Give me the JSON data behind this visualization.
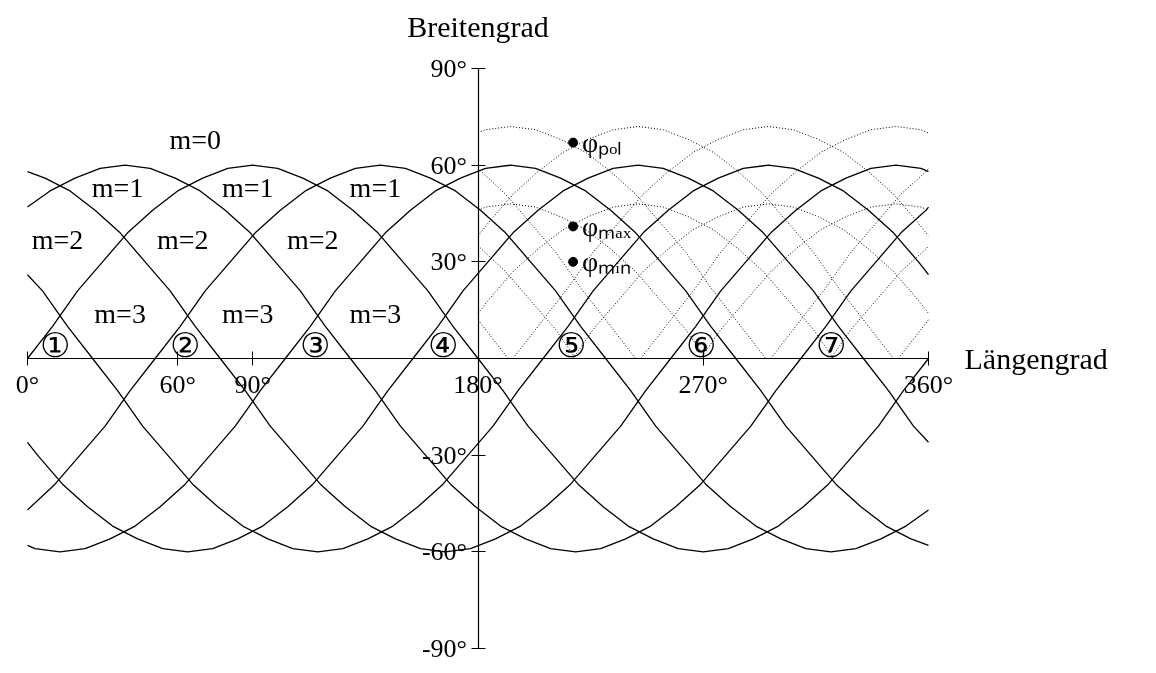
{
  "chart_data": {
    "type": "line",
    "xlabel": "Längengrad",
    "ylabel": "Breitengrad",
    "xlim": [
      0,
      360
    ],
    "ylim": [
      -90,
      90
    ],
    "xticks": [
      {
        "value": 0,
        "label": "0°"
      },
      {
        "value": 60,
        "label": "60°"
      },
      {
        "value": 90,
        "label": "90°"
      },
      {
        "value": 180,
        "label": "180°"
      },
      {
        "value": 270,
        "label": "270°"
      },
      {
        "value": 360,
        "label": "360°"
      }
    ],
    "yticks": [
      {
        "value": -90,
        "label": "-90°"
      },
      {
        "value": -60,
        "label": "-60°"
      },
      {
        "value": -30,
        "label": "-30°"
      },
      {
        "value": 30,
        "label": "30°"
      },
      {
        "value": 60,
        "label": "60°"
      },
      {
        "value": 90,
        "label": "90°"
      }
    ],
    "grid": false,
    "series": [
      {
        "line_style": "solid",
        "color": "#000000",
        "x": [
          0,
          10,
          20,
          30,
          40,
          50,
          60,
          70,
          80,
          90,
          100,
          110,
          120,
          130,
          140,
          150,
          160,
          170,
          180,
          190,
          200,
          210,
          220,
          230,
          240,
          250,
          260,
          270,
          280,
          290,
          300,
          310,
          320,
          330,
          340,
          350,
          360
        ],
        "values": [
          0,
          10,
          21,
          30,
          39,
          46,
          52,
          56,
          59,
          60,
          59,
          56,
          52,
          46,
          39,
          30,
          21,
          10,
          0,
          -10,
          -21,
          -30,
          -39,
          -46,
          -52,
          -56,
          -59,
          -60,
          -59,
          -56,
          -52,
          -46,
          -39,
          -30,
          -21,
          -10,
          0
        ]
      },
      {
        "line_style": "solid",
        "color": "#000000",
        "x": [
          0,
          11,
          21,
          31,
          41,
          51,
          61,
          71,
          81,
          91,
          101,
          111,
          121,
          131,
          141,
          151,
          161,
          171,
          181,
          191,
          201,
          211,
          221,
          231,
          241,
          251,
          261,
          271,
          281,
          291,
          301,
          311,
          321,
          331,
          341,
          351,
          360
        ],
        "values": [
          -47,
          -39,
          -30,
          -21,
          -10,
          0,
          10,
          21,
          30,
          39,
          46,
          52,
          56,
          59,
          60,
          59,
          56,
          52,
          46,
          39,
          30,
          21,
          10,
          0,
          -10,
          -21,
          -30,
          -39,
          -46,
          -52,
          -56,
          -59,
          -60,
          -59,
          -56,
          -52,
          -47
        ]
      },
      {
        "line_style": "solid",
        "color": "#000000",
        "x": [
          0,
          3,
          13,
          23,
          33,
          43,
          53,
          63,
          73,
          83,
          93,
          103,
          113,
          123,
          133,
          143,
          153,
          163,
          173,
          183,
          193,
          203,
          213,
          223,
          233,
          243,
          253,
          263,
          273,
          283,
          293,
          303,
          313,
          323,
          333,
          343,
          353,
          360
        ],
        "values": [
          -58,
          -59,
          -60,
          -59,
          -56,
          -52,
          -46,
          -39,
          -30,
          -21,
          -10,
          0,
          10,
          21,
          30,
          39,
          46,
          52,
          56,
          59,
          60,
          59,
          56,
          52,
          46,
          39,
          30,
          21,
          10,
          0,
          -10,
          -21,
          -30,
          -39,
          -46,
          -52,
          -56,
          -58
        ]
      },
      {
        "line_style": "solid",
        "color": "#000000",
        "x": [
          0,
          4,
          14,
          24,
          34,
          44,
          54,
          64,
          74,
          84,
          94,
          104,
          114,
          124,
          134,
          144,
          154,
          164,
          174,
          184,
          194,
          204,
          214,
          224,
          234,
          244,
          254,
          264,
          274,
          284,
          294,
          304,
          314,
          324,
          334,
          344,
          354,
          360
        ],
        "values": [
          -26,
          -30,
          -39,
          -46,
          -52,
          -56,
          -59,
          -60,
          -59,
          -56,
          -52,
          -46,
          -39,
          -30,
          -21,
          -10,
          0,
          10,
          21,
          30,
          39,
          46,
          52,
          56,
          59,
          60,
          59,
          56,
          52,
          46,
          39,
          30,
          21,
          10,
          0,
          -10,
          -21,
          -26
        ]
      },
      {
        "line_style": "solid",
        "color": "#000000",
        "x": [
          0,
          6,
          16,
          26,
          36,
          46,
          56,
          66,
          76,
          86,
          96,
          106,
          116,
          126,
          136,
          146,
          156,
          166,
          176,
          186,
          196,
          206,
          216,
          226,
          236,
          246,
          256,
          266,
          276,
          286,
          296,
          306,
          316,
          326,
          336,
          346,
          356,
          360
        ],
        "values": [
          26,
          21,
          10,
          0,
          -10,
          -21,
          -30,
          -39,
          -46,
          -52,
          -56,
          -59,
          -60,
          -59,
          -56,
          -52,
          -46,
          -39,
          -30,
          -21,
          -10,
          0,
          10,
          21,
          30,
          39,
          46,
          52,
          56,
          59,
          60,
          59,
          56,
          52,
          46,
          39,
          30,
          26
        ]
      },
      {
        "line_style": "solid",
        "color": "#000000",
        "x": [
          0,
          7,
          17,
          27,
          37,
          47,
          57,
          67,
          77,
          87,
          97,
          107,
          117,
          127,
          137,
          147,
          157,
          167,
          177,
          187,
          197,
          207,
          217,
          227,
          237,
          247,
          257,
          267,
          277,
          287,
          297,
          307,
          317,
          327,
          337,
          347,
          357,
          360
        ],
        "values": [
          58,
          56,
          52,
          46,
          39,
          30,
          21,
          10,
          0,
          -10,
          -21,
          -30,
          -39,
          -46,
          -52,
          -56,
          -59,
          -60,
          -59,
          -56,
          -52,
          -46,
          -39,
          -30,
          -21,
          -10,
          0,
          10,
          21,
          30,
          39,
          46,
          52,
          56,
          59,
          60,
          59,
          58
        ]
      },
      {
        "line_style": "solid",
        "color": "#000000",
        "x": [
          0,
          9,
          19,
          29,
          39,
          49,
          59,
          69,
          79,
          89,
          99,
          109,
          119,
          129,
          139,
          149,
          159,
          169,
          179,
          189,
          199,
          209,
          219,
          229,
          239,
          249,
          259,
          269,
          279,
          289,
          299,
          309,
          319,
          329,
          339,
          349,
          359,
          360
        ],
        "values": [
          47,
          52,
          56,
          59,
          60,
          59,
          56,
          52,
          46,
          39,
          30,
          21,
          10,
          0,
          -10,
          -21,
          -30,
          -39,
          -46,
          -52,
          -56,
          -59,
          -60,
          -59,
          -56,
          -52,
          -46,
          -39,
          -30,
          -21,
          -10,
          0,
          10,
          21,
          30,
          39,
          46,
          47
        ]
      },
      {
        "line_style": "dotted",
        "color": "#000000",
        "x": [
          180,
          190,
          192,
          270,
          348,
          350,
          360
        ],
        "values": [
          12,
          2,
          0,
          null,
          0,
          2,
          12
        ]
      },
      {
        "line_style": "dotted",
        "color": "#000000",
        "x": [
          180,
          191,
          201,
          211,
          221,
          231,
          241,
          243
        ],
        "values": [
          59,
          51,
          42,
          33,
          22,
          12,
          2,
          0
        ]
      },
      {
        "line_style": "dotted",
        "color": "#000000",
        "x": [
          180,
          183,
          193,
          203,
          213,
          223,
          233,
          243,
          253,
          263,
          273,
          283,
          293,
          295
        ],
        "values": [
          70,
          71,
          72,
          71,
          68,
          64,
          58,
          51,
          42,
          33,
          22,
          12,
          2,
          0
        ]
      },
      {
        "line_style": "dotted",
        "color": "#000000",
        "x": [
          180,
          184,
          194,
          204,
          214,
          224,
          234,
          244,
          254,
          264,
          274,
          284,
          294,
          304,
          314,
          324,
          334,
          344,
          346
        ],
        "values": [
          38,
          42,
          51,
          58,
          64,
          68,
          71,
          72,
          71,
          68,
          64,
          58,
          51,
          42,
          33,
          22,
          12,
          2,
          0
        ]
      },
      {
        "line_style": "dotted",
        "color": "#000000",
        "x": [
          194,
          196,
          206,
          216,
          226,
          236,
          246,
          256,
          266,
          276,
          286,
          296,
          306,
          316,
          326,
          336,
          346,
          356,
          360
        ],
        "values": [
          0,
          2,
          12,
          22,
          33,
          42,
          51,
          58,
          64,
          68,
          71,
          72,
          71,
          68,
          64,
          58,
          51,
          42,
          38
        ]
      },
      {
        "line_style": "dotted",
        "color": "#000000",
        "x": [
          245,
          247,
          257,
          267,
          277,
          287,
          297,
          307,
          317,
          327,
          337,
          347,
          357,
          360
        ],
        "values": [
          0,
          2,
          12,
          22,
          33,
          42,
          51,
          58,
          64,
          68,
          71,
          72,
          71,
          70
        ]
      },
      {
        "line_style": "dotted",
        "color": "#000000",
        "x": [
          297,
          299,
          309,
          319,
          329,
          339,
          349,
          359,
          360
        ],
        "values": [
          0,
          2,
          12,
          22,
          33,
          42,
          51,
          58,
          59
        ]
      },
      {
        "line_style": "dotted",
        "color": "#000000",
        "x": [
          180,
          191,
          201,
          211,
          219
        ],
        "values": [
          35,
          27,
          18,
          9,
          0
        ]
      },
      {
        "line_style": "dotted",
        "color": "#000000",
        "x": [
          180,
          183,
          193,
          203,
          213,
          223,
          233,
          243,
          253,
          263,
          271
        ],
        "values": [
          46,
          47,
          48,
          47,
          44,
          40,
          34,
          27,
          18,
          9,
          0
        ]
      },
      {
        "line_style": "dotted",
        "color": "#000000",
        "x": [
          180,
          184,
          194,
          204,
          214,
          224,
          234,
          244,
          254,
          264,
          274,
          284,
          294,
          304,
          314,
          322
        ],
        "values": [
          14,
          18,
          27,
          34,
          40,
          44,
          47,
          48,
          47,
          44,
          40,
          34,
          27,
          18,
          9,
          0
        ]
      },
      {
        "line_style": "dotted",
        "color": "#000000",
        "x": [
          218,
          226,
          236,
          246,
          256,
          266,
          276,
          286,
          296,
          306,
          316,
          326,
          336,
          346,
          356,
          360
        ],
        "values": [
          0,
          9,
          18,
          27,
          34,
          40,
          44,
          47,
          48,
          47,
          44,
          40,
          34,
          27,
          18,
          14
        ]
      },
      {
        "line_style": "dotted",
        "color": "#000000",
        "x": [
          269,
          277,
          287,
          297,
          307,
          317,
          327,
          337,
          347,
          357,
          360
        ],
        "values": [
          0,
          9,
          18,
          27,
          34,
          40,
          44,
          47,
          48,
          47,
          46
        ]
      },
      {
        "line_style": "dotted",
        "color": "#000000",
        "x": [
          321,
          329,
          339,
          349,
          359,
          360
        ],
        "values": [
          0,
          9,
          18,
          27,
          34,
          35
        ]
      },
      {
        "type": "scatter",
        "name": "φₚₒₗ",
        "marker": "circle",
        "color": "#000000",
        "x": [
          218
        ],
        "values": [
          67
        ]
      },
      {
        "type": "scatter",
        "name": "φₘₐₓ",
        "marker": "circle",
        "color": "#000000",
        "x": [
          218
        ],
        "values": [
          41
        ]
      },
      {
        "type": "scatter",
        "name": "φₘᵢₙ",
        "marker": "circle",
        "color": "#000000",
        "x": [
          218
        ],
        "values": [
          30
        ]
      }
    ],
    "annotations": [
      "m=0",
      "m=1",
      "m=1",
      "m=1",
      "m=2",
      "m=2",
      "m=2",
      "m=3",
      "m=3",
      "m=3",
      "①",
      "②",
      "③",
      "④",
      "⑤",
      "⑥",
      "⑦"
    ]
  }
}
